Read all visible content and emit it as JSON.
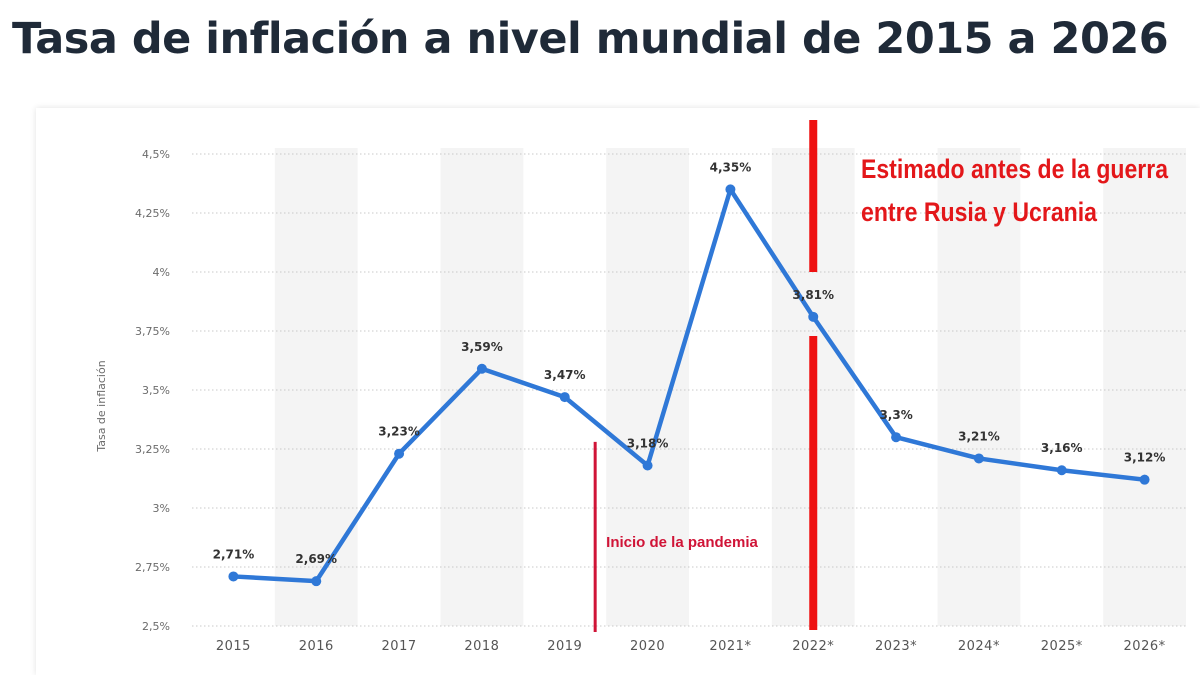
{
  "page": {
    "title": "Tasa de inflación a nivel mundial de 2015 a 2026"
  },
  "chart_data": {
    "type": "line",
    "title": "Tasa de inflación a nivel mundial de 2015 a 2026",
    "xlabel": "",
    "ylabel": "Tasa de inflación",
    "categories": [
      "2015",
      "2016",
      "2017",
      "2018",
      "2019",
      "2020",
      "2021*",
      "2022*",
      "2023*",
      "2024*",
      "2025*",
      "2026*"
    ],
    "series": [
      {
        "values": [
          2.71,
          2.69,
          3.23,
          3.59,
          3.47,
          3.18,
          4.35,
          3.81,
          3.3,
          3.21,
          3.16,
          3.12
        ],
        "data_labels": [
          "2,71%",
          "2,69%",
          "3,23%",
          "3,59%",
          "3,47%",
          "3,18%",
          "4,35%",
          "3,81%",
          "3,3%",
          "3,21%",
          "3,16%",
          "3,12%"
        ],
        "color": "#2f78d7"
      }
    ],
    "ylim": [
      2.5,
      4.5
    ],
    "yticks": [
      {
        "value": 2.5,
        "label": "2,5%"
      },
      {
        "value": 2.75,
        "label": "2,75%"
      },
      {
        "value": 3,
        "label": "3%"
      },
      {
        "value": 3.25,
        "label": "3,25%"
      },
      {
        "value": 3.5,
        "label": "3,5%"
      },
      {
        "value": 3.75,
        "label": "3,75%"
      },
      {
        "value": 4,
        "label": "4%"
      },
      {
        "value": 4.25,
        "label": "4,25%"
      },
      {
        "value": 4.5,
        "label": "4,5%"
      }
    ],
    "grid": true,
    "grid_style": "dotted",
    "alternating_column_bands": true,
    "annotations": [
      {
        "text": "Inicio de la pandemia",
        "at_category": "2019–2020",
        "color": "#d01437"
      },
      {
        "text_lines": [
          "Estimado antes de la guerra",
          "entre Rusia y Ucrania"
        ],
        "at_category": "2022*",
        "color": "#e3171a"
      }
    ]
  }
}
